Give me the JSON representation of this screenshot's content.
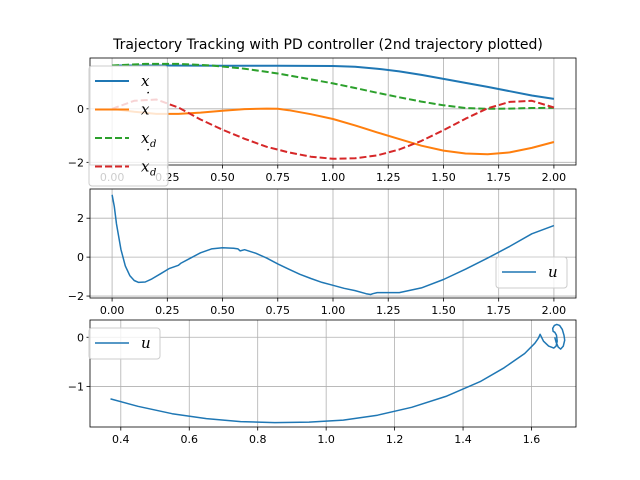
{
  "figure": {
    "title": "Trajectory Tracking with PD controller (2nd trajectory plotted)"
  },
  "chart_data": [
    {
      "type": "line",
      "xlim": [
        -0.1,
        2.1
      ],
      "ylim": [
        -2.1,
        1.9
      ],
      "xticks": [
        0,
        0.25,
        0.5,
        0.75,
        1.0,
        1.25,
        1.5,
        1.75,
        2.0
      ],
      "xtick_labels": [
        "0.00",
        "0.25",
        "0.50",
        "0.75",
        "1.00",
        "1.25",
        "1.50",
        "1.75",
        "2.00"
      ],
      "yticks": [
        -2,
        0
      ],
      "ytick_labels": [
        "−2",
        "0"
      ],
      "grid": true,
      "legend_placement": "upper-left",
      "series": [
        {
          "name": "x",
          "legend_base": "x",
          "legend_sub": "",
          "legend_dot": false,
          "color": "#1f77b4",
          "dash": "solid",
          "x": [
            0,
            0.25,
            0.5,
            0.75,
            1.0,
            1.1,
            1.2,
            1.3,
            1.4,
            1.5,
            1.6,
            1.7,
            1.8,
            1.9,
            2.0
          ],
          "y": [
            1.62,
            1.62,
            1.61,
            1.61,
            1.6,
            1.57,
            1.5,
            1.4,
            1.27,
            1.12,
            0.97,
            0.82,
            0.66,
            0.5,
            0.37
          ]
        },
        {
          "name": "ẋ",
          "legend_base": "x",
          "legend_sub": "",
          "legend_dot": true,
          "color": "#ff7f0e",
          "dash": "solid",
          "x": [
            0,
            0.1,
            0.2,
            0.3,
            0.4,
            0.5,
            0.6,
            0.7,
            0.75,
            0.8,
            0.9,
            1.0,
            1.1,
            1.2,
            1.3,
            1.4,
            1.5,
            1.6,
            1.7,
            1.8,
            1.9,
            2.0
          ],
          "y": [
            0.0,
            -0.11,
            -0.19,
            -0.19,
            -0.14,
            -0.07,
            -0.01,
            0.01,
            0.0,
            -0.05,
            -0.2,
            -0.38,
            -0.62,
            -0.88,
            -1.13,
            -1.38,
            -1.56,
            -1.67,
            -1.7,
            -1.63,
            -1.46,
            -1.24
          ]
        },
        {
          "name": "x_d",
          "legend_base": "x",
          "legend_sub": "d",
          "legend_dot": false,
          "color": "#2ca02c",
          "dash": "dashed",
          "x": [
            0,
            0.15,
            0.3,
            0.45,
            0.6,
            0.75,
            0.9,
            1.0,
            1.1,
            1.2,
            1.3,
            1.4,
            1.5,
            1.6,
            1.7,
            1.8,
            1.9,
            2.0
          ],
          "y": [
            1.62,
            1.68,
            1.68,
            1.62,
            1.5,
            1.32,
            1.1,
            0.95,
            0.78,
            0.6,
            0.43,
            0.27,
            0.13,
            0.03,
            0.0,
            0.01,
            0.03,
            0.04
          ]
        },
        {
          "name": "ẋ_d",
          "legend_base": "x",
          "legend_sub": "d",
          "legend_dot": true,
          "color": "#d62728",
          "dash": "dashed",
          "x": [
            0,
            0.1,
            0.2,
            0.3,
            0.4,
            0.5,
            0.6,
            0.7,
            0.8,
            0.9,
            1.0,
            1.1,
            1.2,
            1.3,
            1.4,
            1.5,
            1.6,
            1.7,
            1.8,
            1.9,
            2.0
          ],
          "y": [
            0.0,
            0.3,
            0.35,
            0.05,
            -0.4,
            -0.78,
            -1.12,
            -1.42,
            -1.63,
            -1.79,
            -1.87,
            -1.85,
            -1.74,
            -1.52,
            -1.2,
            -0.8,
            -0.37,
            0.02,
            0.26,
            0.3,
            0.05
          ]
        }
      ]
    },
    {
      "type": "line",
      "xlim": [
        -0.1,
        2.1
      ],
      "ylim": [
        -2.1,
        3.5
      ],
      "xticks": [
        0,
        0.25,
        0.5,
        0.75,
        1.0,
        1.25,
        1.5,
        1.75,
        2.0
      ],
      "xtick_labels": [
        "0.00",
        "0.25",
        "0.50",
        "0.75",
        "1.00",
        "1.25",
        "1.50",
        "1.75",
        "2.00"
      ],
      "yticks": [
        -2,
        0,
        2
      ],
      "ytick_labels": [
        "−2",
        "0",
        "2"
      ],
      "grid": true,
      "legend_placement": "lower-right",
      "series": [
        {
          "name": "u",
          "legend_base": "u",
          "legend_sub": "",
          "legend_dot": false,
          "color": "#1f77b4",
          "dash": "solid",
          "x": [
            0,
            0.01,
            0.02,
            0.04,
            0.06,
            0.08,
            0.1,
            0.12,
            0.15,
            0.18,
            0.22,
            0.26,
            0.3,
            0.31,
            0.35,
            0.4,
            0.45,
            0.5,
            0.55,
            0.57,
            0.58,
            0.6,
            0.65,
            0.7,
            0.75,
            0.8,
            0.85,
            0.9,
            0.95,
            1.0,
            1.05,
            1.1,
            1.15,
            1.17,
            1.18,
            1.2,
            1.3,
            1.4,
            1.5,
            1.6,
            1.7,
            1.8,
            1.9,
            2.0
          ],
          "y": [
            3.2,
            2.6,
            1.7,
            0.4,
            -0.45,
            -0.95,
            -1.2,
            -1.3,
            -1.28,
            -1.12,
            -0.85,
            -0.58,
            -0.42,
            -0.32,
            -0.08,
            0.22,
            0.42,
            0.48,
            0.46,
            0.42,
            0.32,
            0.38,
            0.2,
            -0.05,
            -0.35,
            -0.62,
            -0.88,
            -1.1,
            -1.3,
            -1.45,
            -1.6,
            -1.72,
            -1.88,
            -1.92,
            -1.88,
            -1.82,
            -1.82,
            -1.58,
            -1.15,
            -0.62,
            -0.05,
            0.55,
            1.2,
            1.62
          ]
        }
      ]
    },
    {
      "type": "line",
      "xlim": [
        0.31,
        1.73
      ],
      "ylim": [
        -1.82,
        0.35
      ],
      "xticks": [
        0.4,
        0.6,
        0.8,
        1.0,
        1.2,
        1.4,
        1.6
      ],
      "xtick_labels": [
        "0.4",
        "0.6",
        "0.8",
        "1.0",
        "1.2",
        "1.4",
        "1.6"
      ],
      "yticks": [
        -1,
        0
      ],
      "ytick_labels": [
        "−1",
        "0"
      ],
      "grid": true,
      "legend_placement": "upper-left",
      "series": [
        {
          "name": "u",
          "legend_base": "u",
          "legend_sub": "",
          "legend_dot": false,
          "color": "#1f77b4",
          "dash": "solid",
          "x": [
            0.37,
            0.45,
            0.55,
            0.65,
            0.75,
            0.85,
            0.95,
            1.05,
            1.15,
            1.25,
            1.35,
            1.45,
            1.52,
            1.58,
            1.61,
            1.62,
            1.625,
            1.635,
            1.65,
            1.665,
            1.672,
            1.675,
            1.673,
            1.668,
            1.663,
            1.662,
            1.667,
            1.674,
            1.682,
            1.69,
            1.695,
            1.697,
            1.693,
            1.685,
            1.678,
            1.672,
            1.668
          ],
          "y": [
            -1.25,
            -1.4,
            -1.55,
            -1.65,
            -1.71,
            -1.73,
            -1.72,
            -1.68,
            -1.58,
            -1.42,
            -1.2,
            -0.9,
            -0.62,
            -0.33,
            -0.12,
            -0.02,
            0.06,
            -0.08,
            -0.18,
            -0.22,
            -0.18,
            -0.08,
            0.04,
            0.1,
            0.12,
            0.18,
            0.24,
            0.26,
            0.24,
            0.16,
            0.04,
            -0.06,
            -0.18,
            -0.24,
            -0.2,
            -0.1,
            0.0
          ]
        }
      ]
    }
  ]
}
